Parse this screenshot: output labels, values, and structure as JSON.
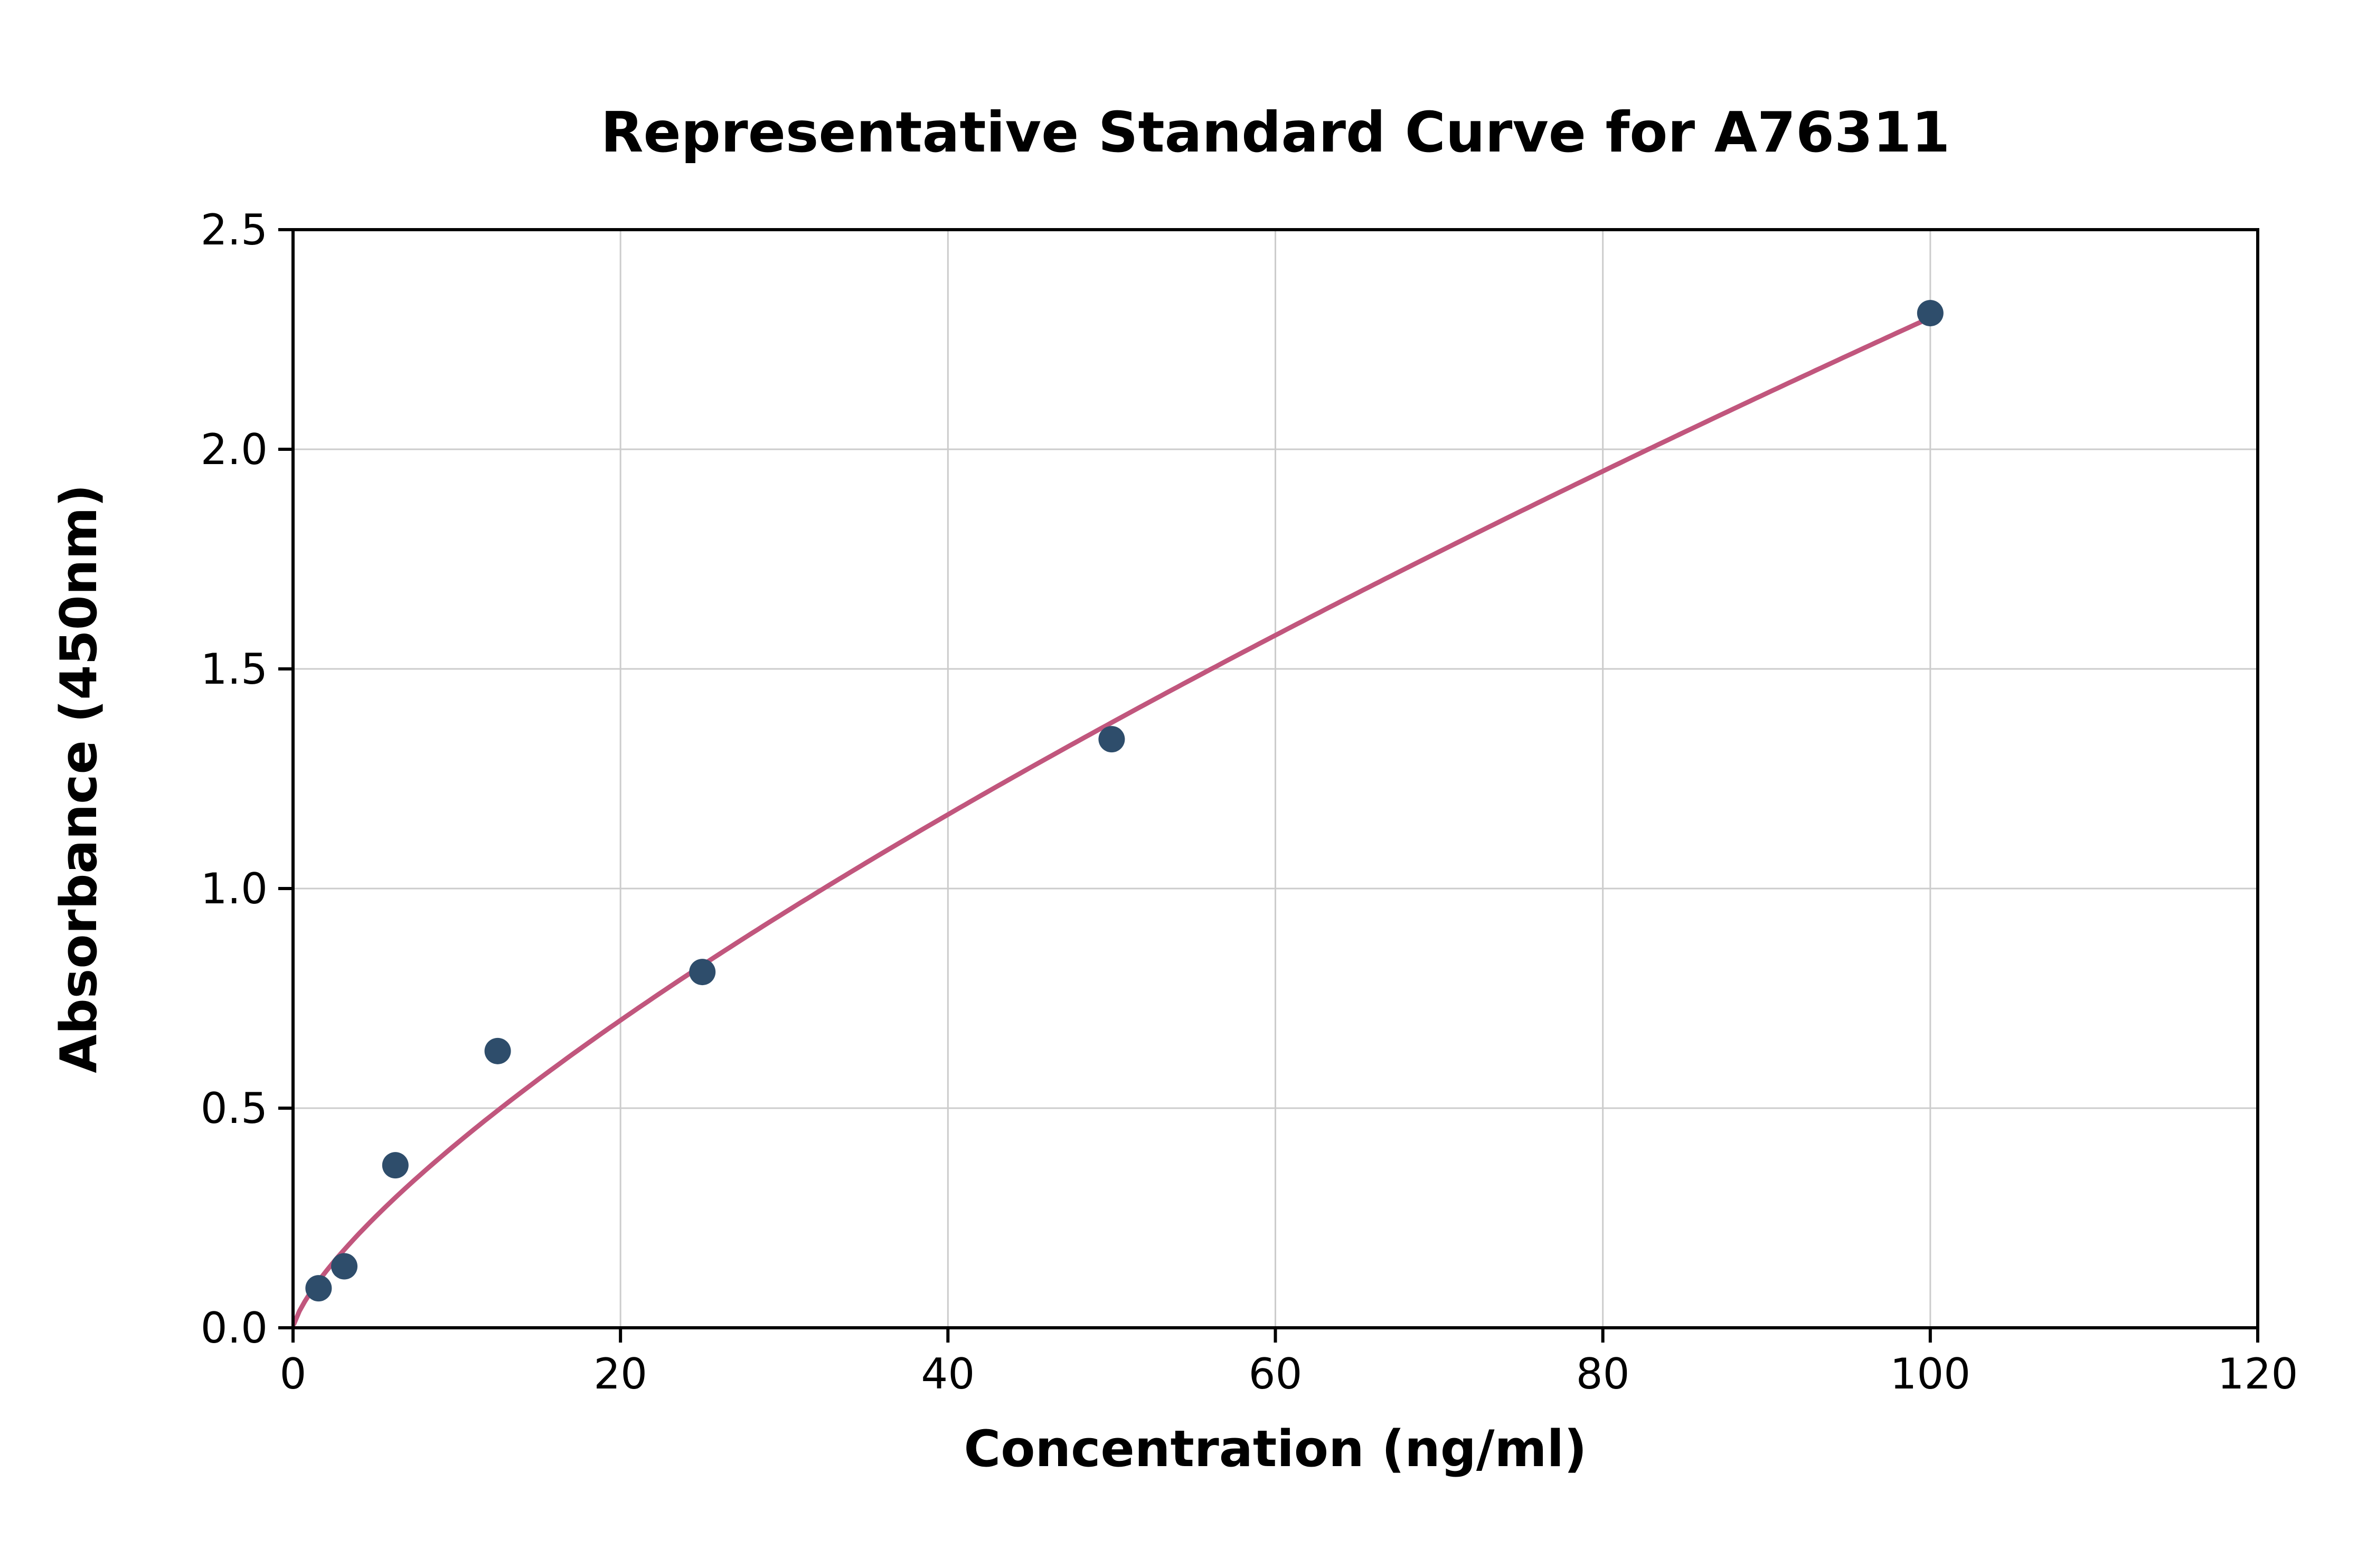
{
  "chart_data": {
    "type": "scatter",
    "title": "Representative Standard Curve for A76311",
    "xlabel": "Concentration (ng/ml)",
    "ylabel": "Absorbance (450nm)",
    "xlim": [
      0,
      120
    ],
    "ylim": [
      0,
      2.5
    ],
    "x_ticks": [
      0,
      20,
      40,
      60,
      80,
      100,
      120
    ],
    "x_tick_labels": [
      "0",
      "20",
      "40",
      "60",
      "80",
      "100",
      "120"
    ],
    "y_ticks": [
      0,
      0.5,
      1.0,
      1.5,
      2.0,
      2.5
    ],
    "y_tick_labels": [
      "0.0",
      "0.5",
      "1.0",
      "1.5",
      "2.0",
      "2.5"
    ],
    "grid": true,
    "legend": "none",
    "points": [
      {
        "x": 1.56,
        "y": 0.09
      },
      {
        "x": 3.13,
        "y": 0.14
      },
      {
        "x": 6.25,
        "y": 0.37
      },
      {
        "x": 12.5,
        "y": 0.63
      },
      {
        "x": 25,
        "y": 0.81
      },
      {
        "x": 50,
        "y": 1.34
      },
      {
        "x": 100,
        "y": 2.31
      }
    ],
    "fit_curve": {
      "type": "power",
      "a": 0.0765,
      "b": 0.739,
      "x_start": 0.05,
      "x_end": 100
    },
    "colors": {
      "points": "#2e4d6b",
      "curve": "#c1567d",
      "grid": "#cccccc",
      "axis": "#000000",
      "background": "#ffffff"
    }
  }
}
